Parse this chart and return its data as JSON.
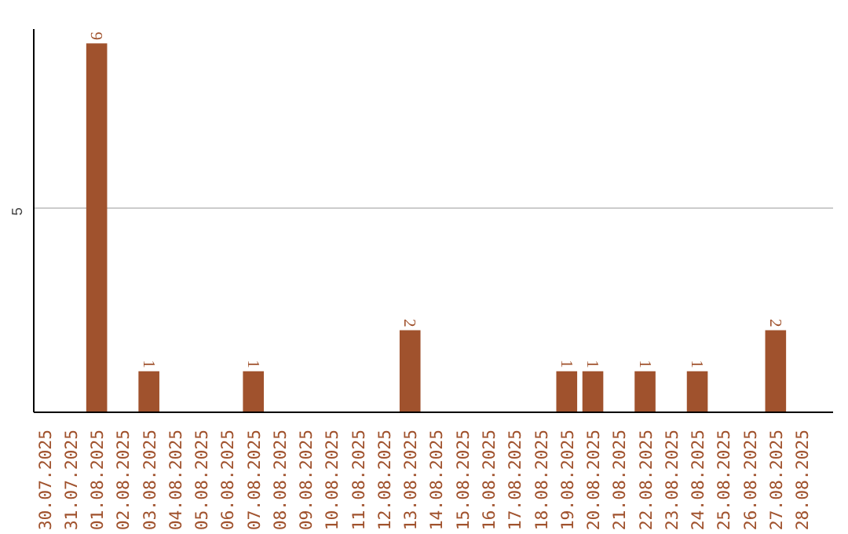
{
  "chart_data": {
    "type": "bar",
    "categories": [
      "30.07.2025",
      "31.07.2025",
      "01.08.2025",
      "02.08.2025",
      "03.08.2025",
      "04.08.2025",
      "05.08.2025",
      "06.08.2025",
      "07.08.2025",
      "08.08.2025",
      "09.08.2025",
      "10.08.2025",
      "11.08.2025",
      "12.08.2025",
      "13.08.2025",
      "14.08.2025",
      "15.08.2025",
      "16.08.2025",
      "17.08.2025",
      "18.08.2025",
      "19.08.2025",
      "20.08.2025",
      "21.08.2025",
      "22.08.2025",
      "23.08.2025",
      "24.08.2025",
      "25.08.2025",
      "26.08.2025",
      "27.08.2025",
      "28.08.2025"
    ],
    "values": [
      0,
      0,
      9,
      0,
      1,
      0,
      0,
      0,
      1,
      0,
      0,
      0,
      0,
      0,
      2,
      0,
      0,
      0,
      0,
      0,
      1,
      1,
      0,
      1,
      0,
      1,
      0,
      0,
      2,
      0
    ],
    "value_labels": [
      null,
      null,
      "9",
      null,
      "1",
      null,
      null,
      null,
      "1",
      null,
      null,
      null,
      null,
      null,
      "2",
      null,
      null,
      null,
      null,
      null,
      "1",
      "1",
      null,
      "1",
      null,
      "1",
      null,
      null,
      "2",
      null
    ],
    "color": "#a0522d",
    "ylim": [
      0,
      9.35
    ],
    "yticks": [
      5
    ],
    "grid": "y"
  }
}
